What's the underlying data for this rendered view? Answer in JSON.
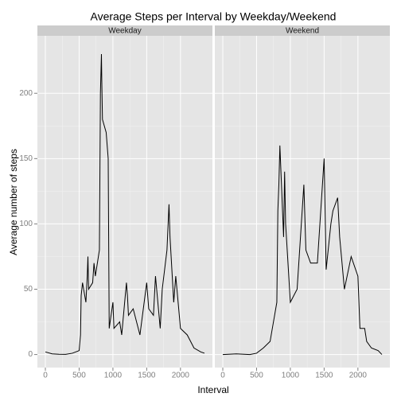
{
  "chart_data": {
    "type": "line",
    "title": "Average Steps per Interval by Weekday/Weekend",
    "x_label": "Interval",
    "y_label": "Average number of steps",
    "xlim": [
      -118,
      2473
    ],
    "ylim": [
      -10,
      244
    ],
    "xticks": [
      0,
      500,
      1000,
      1500,
      2000
    ],
    "yticks": [
      0,
      50,
      100,
      150,
      200
    ],
    "grid": true,
    "series": [
      {
        "name": "Weekday",
        "color": "#000000",
        "x": [
          0,
          100,
          200,
          300,
          400,
          500,
          520,
          530,
          550,
          600,
          620,
          630,
          640,
          700,
          720,
          740,
          800,
          815,
          830,
          835,
          845,
          900,
          930,
          945,
          1000,
          1015,
          1100,
          1130,
          1200,
          1215,
          1230,
          1300,
          1400,
          1500,
          1530,
          1600,
          1630,
          1700,
          1730,
          1800,
          1830,
          1845,
          1900,
          1930,
          2000,
          2100,
          2200,
          2300,
          2355
        ],
        "values": [
          2,
          0.5,
          0.2,
          0.1,
          1,
          3,
          15,
          45,
          55,
          40,
          60,
          75,
          50,
          55,
          70,
          60,
          80,
          200,
          230,
          210,
          180,
          170,
          150,
          20,
          40,
          20,
          25,
          15,
          55,
          45,
          30,
          35,
          15,
          55,
          35,
          30,
          60,
          20,
          50,
          80,
          115,
          90,
          40,
          60,
          20,
          15,
          5,
          2,
          1
        ]
      },
      {
        "name": "Weekend",
        "color": "#000000",
        "x": [
          0,
          200,
          400,
          500,
          600,
          700,
          800,
          815,
          830,
          845,
          900,
          915,
          930,
          1000,
          1100,
          1200,
          1230,
          1300,
          1400,
          1500,
          1530,
          1600,
          1630,
          1700,
          1730,
          1800,
          1900,
          2000,
          2030,
          2100,
          2130,
          2200,
          2300,
          2355
        ],
        "values": [
          0,
          0.5,
          0,
          1,
          5,
          10,
          40,
          110,
          130,
          160,
          90,
          140,
          100,
          40,
          50,
          130,
          80,
          70,
          70,
          150,
          65,
          100,
          110,
          120,
          90,
          50,
          75,
          60,
          20,
          20,
          10,
          5,
          3,
          0
        ]
      }
    ]
  }
}
